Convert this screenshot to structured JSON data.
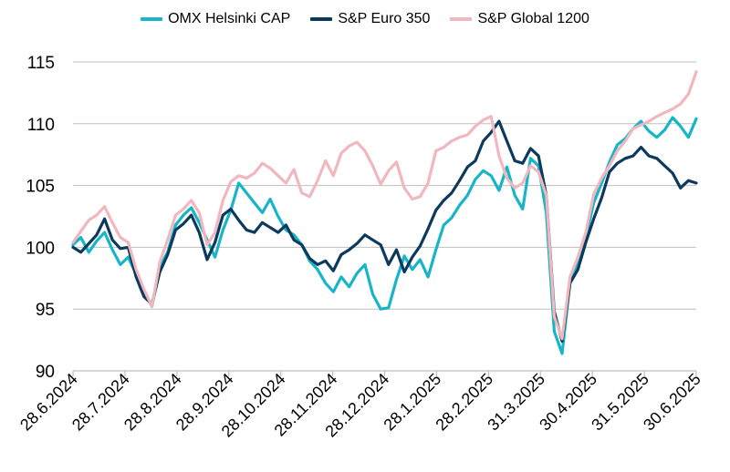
{
  "chart_data": {
    "type": "line",
    "title": "",
    "xlabel": "",
    "ylabel": "",
    "ylim": [
      90,
      115
    ],
    "yticks": [
      90,
      95,
      100,
      105,
      110,
      115
    ],
    "grid": "horizontal",
    "legend_position": "top-center",
    "x_ticks": [
      "28.6.2024",
      "28.7.2024",
      "28.8.2024",
      "28.9.2024",
      "28.10.2024",
      "28.11.2024",
      "28.12.2024",
      "28.1.2025",
      "28.2.2025",
      "31.3.2025",
      "30.4.2025",
      "31.5.2025",
      "30.6.2025"
    ],
    "series": [
      {
        "name": "OMX Helsinki CAP",
        "color": "#17b5c7",
        "values": [
          [
            0,
            100.2
          ],
          [
            1,
            100.8
          ],
          [
            2,
            99.6
          ],
          [
            3,
            100.5
          ],
          [
            4,
            101.2
          ],
          [
            5,
            99.8
          ],
          [
            6,
            98.6
          ],
          [
            7,
            99.2
          ],
          [
            8,
            97.8
          ],
          [
            9,
            96.5
          ],
          [
            10,
            95.2
          ],
          [
            11,
            98.4
          ],
          [
            12,
            99.6
          ],
          [
            13,
            101.8
          ],
          [
            14,
            102.6
          ],
          [
            15,
            103.2
          ],
          [
            16,
            102.0
          ],
          [
            17,
            100.6
          ],
          [
            18,
            99.2
          ],
          [
            19,
            101.4
          ],
          [
            20,
            103.0
          ],
          [
            21,
            105.2
          ],
          [
            22,
            104.4
          ],
          [
            23,
            103.6
          ],
          [
            24,
            102.8
          ],
          [
            25,
            103.9
          ],
          [
            26,
            102.5
          ],
          [
            27,
            101.4
          ],
          [
            28,
            101.0
          ],
          [
            29,
            100.2
          ],
          [
            30,
            98.9
          ],
          [
            31,
            98.2
          ],
          [
            32,
            97.1
          ],
          [
            33,
            96.4
          ],
          [
            34,
            97.6
          ],
          [
            35,
            96.8
          ],
          [
            36,
            97.9
          ],
          [
            37,
            98.6
          ],
          [
            38,
            96.2
          ],
          [
            39,
            95.0
          ],
          [
            40,
            95.1
          ],
          [
            41,
            97.4
          ],
          [
            42,
            99.3
          ],
          [
            43,
            98.2
          ],
          [
            44,
            99.0
          ],
          [
            45,
            97.6
          ],
          [
            46,
            99.8
          ],
          [
            47,
            101.8
          ],
          [
            48,
            102.4
          ],
          [
            49,
            103.4
          ],
          [
            50,
            104.2
          ],
          [
            51,
            105.5
          ],
          [
            52,
            106.2
          ],
          [
            53,
            105.8
          ],
          [
            54,
            104.6
          ],
          [
            55,
            106.5
          ],
          [
            56,
            104.2
          ],
          [
            57,
            103.1
          ],
          [
            58,
            107.2
          ],
          [
            59,
            106.6
          ],
          [
            60,
            102.8
          ],
          [
            61,
            93.2
          ],
          [
            62,
            91.4
          ],
          [
            63,
            97.2
          ],
          [
            64,
            98.8
          ],
          [
            65,
            100.8
          ],
          [
            66,
            103.6
          ],
          [
            67,
            105.2
          ],
          [
            68,
            106.9
          ],
          [
            69,
            108.3
          ],
          [
            70,
            108.8
          ],
          [
            71,
            109.6
          ],
          [
            72,
            110.2
          ],
          [
            73,
            109.4
          ],
          [
            74,
            108.9
          ],
          [
            75,
            109.5
          ],
          [
            76,
            110.5
          ],
          [
            77,
            109.8
          ],
          [
            78,
            108.9
          ],
          [
            79,
            110.4
          ]
        ]
      },
      {
        "name": "S&P Euro 350",
        "color": "#0c3a5e",
        "values": [
          [
            0,
            100.0
          ],
          [
            1,
            99.6
          ],
          [
            2,
            100.3
          ],
          [
            3,
            101.0
          ],
          [
            4,
            102.3
          ],
          [
            5,
            100.6
          ],
          [
            6,
            99.9
          ],
          [
            7,
            100.0
          ],
          [
            8,
            97.6
          ],
          [
            9,
            96.0
          ],
          [
            10,
            95.4
          ],
          [
            11,
            98.0
          ],
          [
            12,
            99.4
          ],
          [
            13,
            101.4
          ],
          [
            14,
            101.9
          ],
          [
            15,
            102.6
          ],
          [
            16,
            101.2
          ],
          [
            17,
            99.0
          ],
          [
            18,
            100.4
          ],
          [
            19,
            102.6
          ],
          [
            20,
            103.1
          ],
          [
            21,
            102.2
          ],
          [
            22,
            101.4
          ],
          [
            23,
            101.2
          ],
          [
            24,
            102.0
          ],
          [
            25,
            101.6
          ],
          [
            26,
            101.2
          ],
          [
            27,
            101.8
          ],
          [
            28,
            100.6
          ],
          [
            29,
            100.2
          ],
          [
            30,
            99.1
          ],
          [
            31,
            98.6
          ],
          [
            32,
            98.9
          ],
          [
            33,
            98.1
          ],
          [
            34,
            99.4
          ],
          [
            35,
            99.8
          ],
          [
            36,
            100.3
          ],
          [
            37,
            101.0
          ],
          [
            38,
            100.6
          ],
          [
            39,
            100.2
          ],
          [
            40,
            98.6
          ],
          [
            41,
            99.8
          ],
          [
            42,
            98.0
          ],
          [
            43,
            99.2
          ],
          [
            44,
            100.1
          ],
          [
            45,
            101.5
          ],
          [
            46,
            103.0
          ],
          [
            47,
            103.8
          ],
          [
            48,
            104.4
          ],
          [
            49,
            105.4
          ],
          [
            50,
            106.5
          ],
          [
            51,
            107.0
          ],
          [
            52,
            108.6
          ],
          [
            53,
            109.3
          ],
          [
            54,
            110.2
          ],
          [
            55,
            108.6
          ],
          [
            56,
            107.0
          ],
          [
            57,
            106.8
          ],
          [
            58,
            108.0
          ],
          [
            59,
            107.4
          ],
          [
            60,
            104.2
          ],
          [
            61,
            94.8
          ],
          [
            62,
            92.4
          ],
          [
            63,
            97.1
          ],
          [
            64,
            98.2
          ],
          [
            65,
            100.4
          ],
          [
            66,
            102.3
          ],
          [
            67,
            104.0
          ],
          [
            68,
            106.1
          ],
          [
            69,
            106.8
          ],
          [
            70,
            107.2
          ],
          [
            71,
            107.4
          ],
          [
            72,
            108.1
          ],
          [
            73,
            107.4
          ],
          [
            74,
            107.2
          ],
          [
            75,
            106.6
          ],
          [
            76,
            106.0
          ],
          [
            77,
            104.8
          ],
          [
            78,
            105.4
          ],
          [
            79,
            105.2
          ]
        ]
      },
      {
        "name": "S&P Global 1200",
        "color": "#f0b8be",
        "values": [
          [
            0,
            100.4
          ],
          [
            1,
            101.3
          ],
          [
            2,
            102.2
          ],
          [
            3,
            102.6
          ],
          [
            4,
            103.3
          ],
          [
            5,
            102.0
          ],
          [
            6,
            100.8
          ],
          [
            7,
            100.4
          ],
          [
            8,
            98.2
          ],
          [
            9,
            96.6
          ],
          [
            10,
            95.2
          ],
          [
            11,
            98.8
          ],
          [
            12,
            100.6
          ],
          [
            13,
            102.6
          ],
          [
            14,
            103.1
          ],
          [
            15,
            103.8
          ],
          [
            16,
            102.8
          ],
          [
            17,
            100.2
          ],
          [
            18,
            101.2
          ],
          [
            19,
            103.8
          ],
          [
            20,
            105.3
          ],
          [
            21,
            105.8
          ],
          [
            22,
            105.6
          ],
          [
            23,
            106.0
          ],
          [
            24,
            106.8
          ],
          [
            25,
            106.4
          ],
          [
            26,
            105.8
          ],
          [
            27,
            105.2
          ],
          [
            28,
            106.3
          ],
          [
            29,
            104.4
          ],
          [
            30,
            104.1
          ],
          [
            31,
            105.4
          ],
          [
            32,
            107.0
          ],
          [
            33,
            105.8
          ],
          [
            34,
            107.6
          ],
          [
            35,
            108.2
          ],
          [
            36,
            108.5
          ],
          [
            37,
            107.8
          ],
          [
            38,
            106.6
          ],
          [
            39,
            105.1
          ],
          [
            40,
            106.2
          ],
          [
            41,
            106.9
          ],
          [
            42,
            104.8
          ],
          [
            43,
            103.9
          ],
          [
            44,
            104.1
          ],
          [
            45,
            105.2
          ],
          [
            46,
            107.8
          ],
          [
            47,
            108.1
          ],
          [
            48,
            108.6
          ],
          [
            49,
            108.9
          ],
          [
            50,
            109.1
          ],
          [
            51,
            109.8
          ],
          [
            52,
            110.3
          ],
          [
            53,
            110.6
          ],
          [
            54,
            107.4
          ],
          [
            55,
            105.6
          ],
          [
            56,
            104.8
          ],
          [
            57,
            105.2
          ],
          [
            58,
            106.6
          ],
          [
            59,
            106.1
          ],
          [
            60,
            104.2
          ],
          [
            61,
            94.4
          ],
          [
            62,
            92.6
          ],
          [
            63,
            97.6
          ],
          [
            64,
            99.2
          ],
          [
            65,
            101.2
          ],
          [
            66,
            104.3
          ],
          [
            67,
            105.6
          ],
          [
            68,
            106.6
          ],
          [
            69,
            107.8
          ],
          [
            70,
            108.6
          ],
          [
            71,
            109.6
          ],
          [
            72,
            109.9
          ],
          [
            73,
            110.2
          ],
          [
            74,
            110.6
          ],
          [
            75,
            110.9
          ],
          [
            76,
            111.2
          ],
          [
            77,
            111.6
          ],
          [
            78,
            112.4
          ],
          [
            79,
            114.2
          ]
        ]
      }
    ]
  }
}
